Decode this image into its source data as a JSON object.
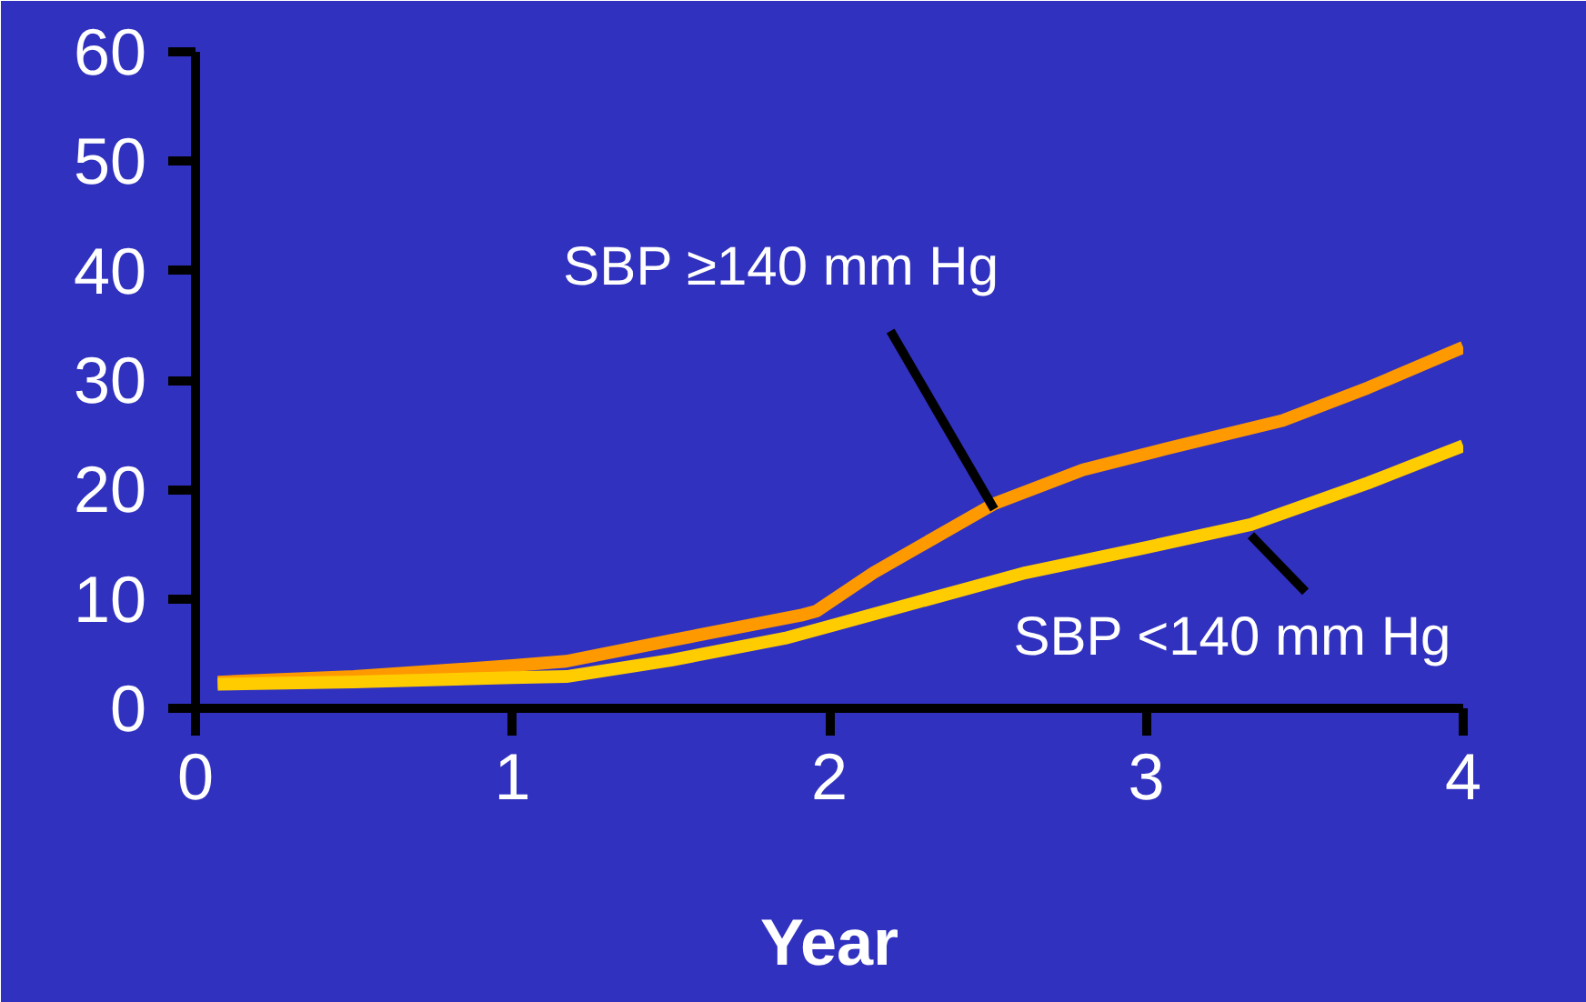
{
  "chart_data": {
    "type": "line",
    "xlabel": "Year",
    "xlim": [
      0,
      4
    ],
    "xticks": [
      0,
      1,
      2,
      3,
      4
    ],
    "ylim": [
      0,
      60
    ],
    "yticks": [
      0,
      10,
      20,
      30,
      40,
      50,
      60
    ],
    "grid": false,
    "marker": "none",
    "line_style": "solid",
    "series": [
      {
        "name": "SBP ≥140 mm Hg",
        "color": "#ff9900",
        "x": [
          0.07,
          0.5,
          1.0,
          1.17,
          1.5,
          1.91,
          1.96,
          2.14,
          2.52,
          2.8,
          3.06,
          3.43,
          3.7,
          4.0
        ],
        "values": [
          2.4,
          2.9,
          3.9,
          4.3,
          6.2,
          8.5,
          8.9,
          12.4,
          18.7,
          21.8,
          23.7,
          26.3,
          29.3,
          33
        ]
      },
      {
        "name": "SBP <140 mm Hg",
        "color": "#ffcc00",
        "x": [
          0.07,
          0.5,
          1.0,
          1.17,
          1.5,
          1.86,
          2.0,
          2.62,
          3.0,
          3.33,
          3.7,
          4.0
        ],
        "values": [
          2.2,
          2.4,
          2.8,
          2.9,
          4.4,
          6.4,
          7.5,
          12.4,
          14.7,
          16.8,
          20.6,
          24
        ]
      }
    ]
  }
}
